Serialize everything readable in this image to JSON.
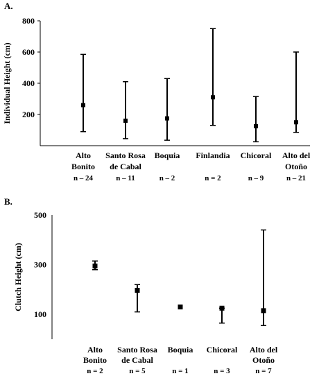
{
  "chart_data": [
    {
      "panel_label": "A.",
      "type": "scatter",
      "ylabel": "Individual  Height (cm)",
      "ylim": [
        0,
        800
      ],
      "yticks": [
        200,
        400,
        600,
        800
      ],
      "grid": false,
      "categories": [
        {
          "lines": [
            "Alto",
            "Bonito"
          ],
          "n": "n – 24",
          "center": 260,
          "low": 90,
          "high": 585
        },
        {
          "lines": [
            "Santo Rosa",
            "de Cabal"
          ],
          "n": "n – 11",
          "center": 160,
          "low": 45,
          "high": 410
        },
        {
          "lines": [
            "Boquia"
          ],
          "n": "n – 2",
          "center": 175,
          "low": 35,
          "high": 430
        },
        {
          "lines": [
            "Finlandia"
          ],
          "n": "n = 2",
          "center": 310,
          "low": 130,
          "high": 750
        },
        {
          "lines": [
            "Chicoral"
          ],
          "n": "n – 9",
          "center": 125,
          "low": 25,
          "high": 315
        },
        {
          "lines": [
            "Alto del",
            "Otoño"
          ],
          "n": "n – 21",
          "center": 150,
          "low": 85,
          "high": 600
        }
      ]
    },
    {
      "panel_label": "B.",
      "type": "scatter",
      "ylabel": "Clutch Height (cm)",
      "ylim": [
        0,
        500
      ],
      "yticks": [
        100,
        300,
        500
      ],
      "grid": false,
      "categories": [
        {
          "lines": [
            "Alto",
            "Bonito"
          ],
          "n": "n = 2",
          "center": 295,
          "low": 280,
          "high": 315
        },
        {
          "lines": [
            "Santo Rosa",
            "de Cabal"
          ],
          "n": "n = 5",
          "center": 197,
          "low": 110,
          "high": 220
        },
        {
          "lines": [
            "Boquia"
          ],
          "n": "n = 1",
          "center": 130,
          "low": 130,
          "high": 130
        },
        {
          "lines": [
            "Chicoral"
          ],
          "n": "n = 3",
          "center": 125,
          "low": 65,
          "high": 125
        },
        {
          "lines": [
            "Alto del",
            "Otoño"
          ],
          "n": "n = 7",
          "center": 115,
          "low": 55,
          "high": 440
        }
      ]
    }
  ]
}
